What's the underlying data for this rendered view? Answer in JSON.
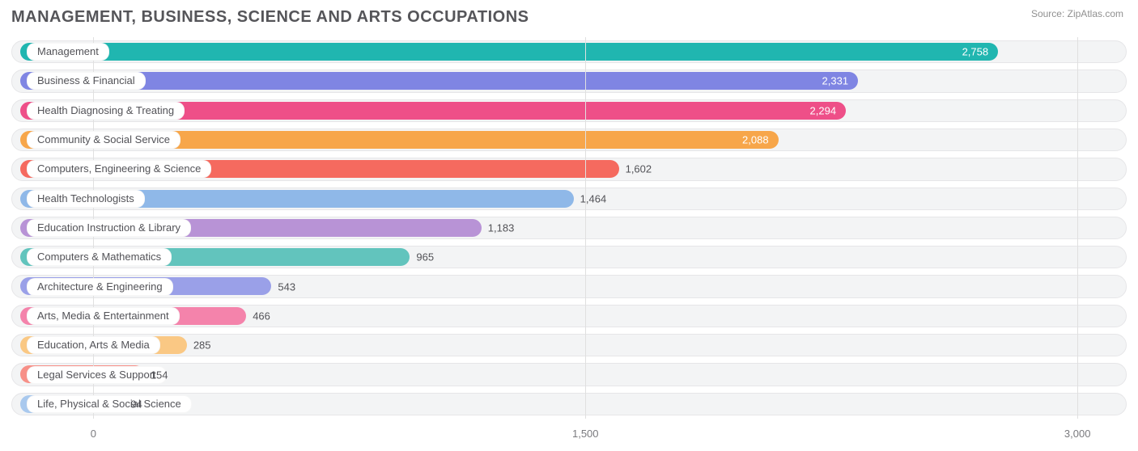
{
  "title": "MANAGEMENT, BUSINESS, SCIENCE AND ARTS OCCUPATIONS",
  "source_label": "Source:",
  "source_name": "ZipAtlas.com",
  "chart": {
    "type": "bar",
    "orientation": "horizontal",
    "background_color": "#ffffff",
    "track_color": "#f3f4f5",
    "track_border_color": "#e6e6e8",
    "grid_color": "#e0e0e0",
    "text_color": "#525257",
    "title_fontsize": 20,
    "label_fontsize": 13,
    "value_fontsize": 13,
    "bar_radius": 12,
    "x_axis": {
      "min": -250,
      "max": 3150,
      "ticks": [
        0,
        1500,
        3000
      ],
      "tick_labels": [
        "0",
        "1,500",
        "3,000"
      ]
    },
    "bars": [
      {
        "label": "Management",
        "value": 2758,
        "display": "2,758",
        "color": "#20b6b0",
        "value_inside": true
      },
      {
        "label": "Business & Financial",
        "value": 2331,
        "display": "2,331",
        "color": "#7f85e3",
        "value_inside": true
      },
      {
        "label": "Health Diagnosing & Treating",
        "value": 2294,
        "display": "2,294",
        "color": "#ee4f88",
        "value_inside": true
      },
      {
        "label": "Community & Social Service",
        "value": 2088,
        "display": "2,088",
        "color": "#f7a64a",
        "value_inside": true
      },
      {
        "label": "Computers, Engineering & Science",
        "value": 1602,
        "display": "1,602",
        "color": "#f56a5f",
        "value_inside": false
      },
      {
        "label": "Health Technologists",
        "value": 1464,
        "display": "1,464",
        "color": "#8fb8e8",
        "value_inside": false
      },
      {
        "label": "Education Instruction & Library",
        "value": 1183,
        "display": "1,183",
        "color": "#b893d6",
        "value_inside": false
      },
      {
        "label": "Computers & Mathematics",
        "value": 965,
        "display": "965",
        "color": "#62c4bd",
        "value_inside": false
      },
      {
        "label": "Architecture & Engineering",
        "value": 543,
        "display": "543",
        "color": "#9aa0e8",
        "value_inside": false
      },
      {
        "label": "Arts, Media & Entertainment",
        "value": 466,
        "display": "466",
        "color": "#f483ab",
        "value_inside": false
      },
      {
        "label": "Education, Arts & Media",
        "value": 285,
        "display": "285",
        "color": "#fac884",
        "value_inside": false
      },
      {
        "label": "Legal Services & Support",
        "value": 154,
        "display": "154",
        "color": "#f79088",
        "value_inside": false
      },
      {
        "label": "Life, Physical & Social Science",
        "value": 94,
        "display": "94",
        "color": "#a9c9ee",
        "value_inside": false
      }
    ]
  }
}
